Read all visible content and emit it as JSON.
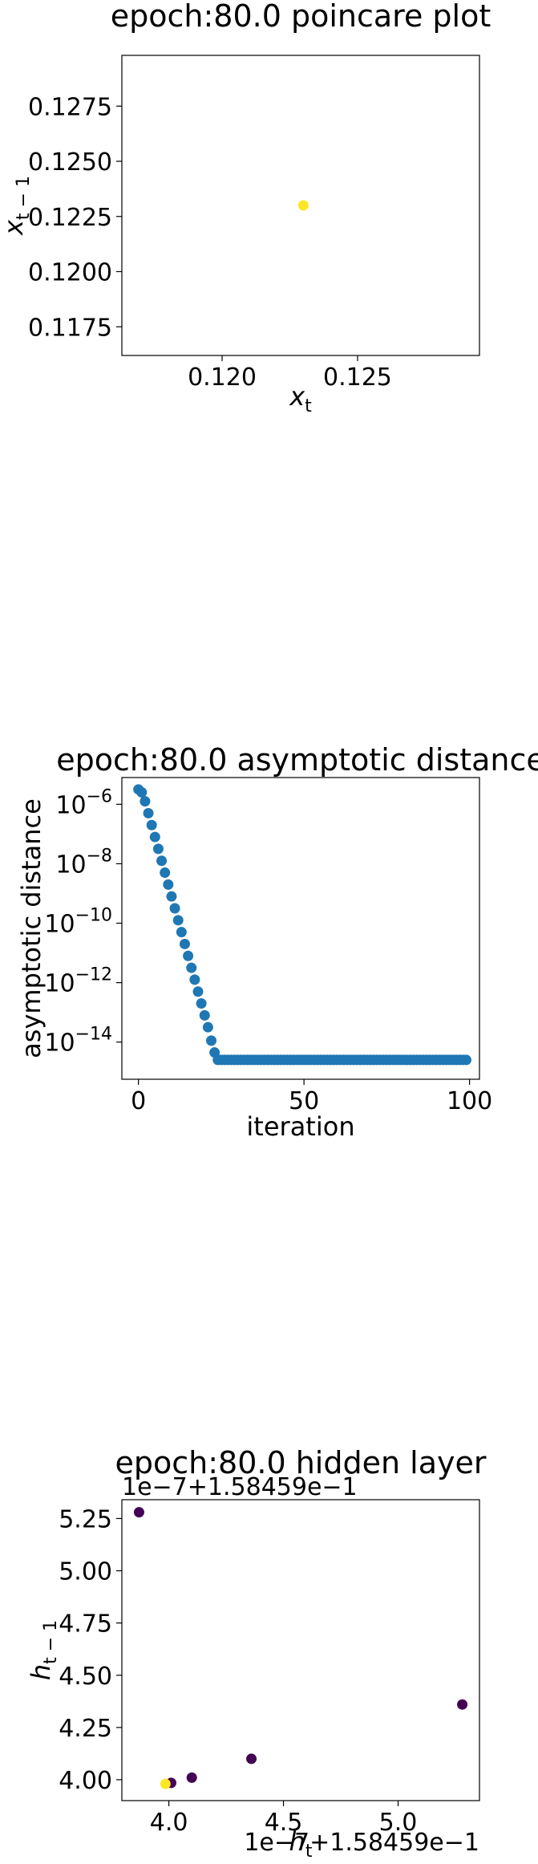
{
  "chart_data": [
    {
      "type": "scatter",
      "title": "epoch:80.0 poincare plot",
      "xlabel": "x",
      "xlabel_sub": "t",
      "ylabel": "x",
      "ylabel_sub": "t − 1",
      "xlim": [
        0.1163,
        0.1295
      ],
      "ylim": [
        0.1162,
        0.1298
      ],
      "xticks": [
        0.12,
        0.125
      ],
      "xtick_labels": [
        "0.120",
        "0.125"
      ],
      "yticks": [
        0.1175,
        0.12,
        0.1225,
        0.125,
        0.1275
      ],
      "ytick_labels": [
        "0.1175",
        "0.1200",
        "0.1225",
        "0.1250",
        "0.1275"
      ],
      "points": [
        {
          "x": 0.123,
          "y": 0.123,
          "color": "#fde725"
        }
      ]
    },
    {
      "type": "scatter",
      "yscale": "log",
      "title": "epoch:80.0 asymptotic distance",
      "xlabel": "iteration",
      "ylabel": "asymptotic distance",
      "xlim": [
        -5,
        103
      ],
      "ylim_exp": [
        -15.25,
        -5.1
      ],
      "xticks": [
        0,
        50,
        100
      ],
      "xtick_labels": [
        "0",
        "50",
        "100"
      ],
      "yticks_exp": [
        -6,
        -8,
        -10,
        -12,
        -14
      ],
      "ytick_labels": [
        {
          "base": "10",
          "exp": "−6"
        },
        {
          "base": "10",
          "exp": "−8"
        },
        {
          "base": "10",
          "exp": "−10"
        },
        {
          "base": "10",
          "exp": "−12"
        },
        {
          "base": "10",
          "exp": "−14"
        }
      ],
      "color": "#1f77b4",
      "x": [
        0,
        1,
        2,
        3,
        4,
        5,
        6,
        7,
        8,
        9,
        10,
        11,
        12,
        13,
        14,
        15,
        16,
        17,
        18,
        19,
        20,
        21,
        22,
        23,
        24,
        25,
        26,
        27,
        28,
        29,
        30,
        31,
        32,
        33,
        34,
        35,
        36,
        37,
        38,
        39,
        40,
        41,
        42,
        43,
        44,
        45,
        46,
        47,
        48,
        49,
        50,
        51,
        52,
        53,
        54,
        55,
        56,
        57,
        58,
        59,
        60,
        61,
        62,
        63,
        64,
        65,
        66,
        67,
        68,
        69,
        70,
        71,
        72,
        73,
        74,
        75,
        76,
        77,
        78,
        79,
        80,
        81,
        82,
        83,
        84,
        85,
        86,
        87,
        88,
        89,
        90,
        91,
        92,
        93,
        94,
        95,
        96,
        97,
        98,
        99
      ],
      "y_exp": [
        -5.5,
        -5.6,
        -5.9,
        -6.3,
        -6.7,
        -7.1,
        -7.5,
        -7.9,
        -8.3,
        -8.7,
        -9.1,
        -9.5,
        -9.9,
        -10.3,
        -10.7,
        -11.1,
        -11.5,
        -11.9,
        -12.3,
        -12.7,
        -13.1,
        -13.5,
        -13.95,
        -14.35,
        -14.6,
        -14.6,
        -14.6,
        -14.6,
        -14.6,
        -14.6,
        -14.6,
        -14.6,
        -14.6,
        -14.6,
        -14.6,
        -14.6,
        -14.6,
        -14.6,
        -14.6,
        -14.6,
        -14.6,
        -14.6,
        -14.6,
        -14.6,
        -14.6,
        -14.6,
        -14.6,
        -14.6,
        -14.6,
        -14.6,
        -14.6,
        -14.6,
        -14.6,
        -14.6,
        -14.6,
        -14.6,
        -14.6,
        -14.6,
        -14.6,
        -14.6,
        -14.6,
        -14.6,
        -14.6,
        -14.6,
        -14.6,
        -14.6,
        -14.6,
        -14.6,
        -14.6,
        -14.6,
        -14.6,
        -14.6,
        -14.6,
        -14.6,
        -14.6,
        -14.6,
        -14.6,
        -14.6,
        -14.6,
        -14.6,
        -14.6,
        -14.6,
        -14.6,
        -14.6,
        -14.6,
        -14.6,
        -14.6,
        -14.6,
        -14.6,
        -14.6,
        -14.6,
        -14.6,
        -14.6,
        -14.6,
        -14.6,
        -14.6,
        -14.6,
        -14.6,
        -14.6,
        -14.6
      ]
    },
    {
      "type": "scatter",
      "title": "epoch:80.0 hidden layer",
      "y_offset_text": "1e−7+1.58459e−1",
      "x_offset_text": "1e−7+1.58459e−1",
      "xlabel": "h",
      "xlabel_sub": "t",
      "ylabel": "h",
      "ylabel_sub": "t − 1",
      "xlim": [
        3.795,
        5.355
      ],
      "ylim": [
        3.9,
        5.34
      ],
      "xticks": [
        4.0,
        4.5,
        5.0
      ],
      "xtick_labels": [
        "4.0",
        "4.5",
        "5.0"
      ],
      "yticks": [
        4.0,
        4.25,
        4.5,
        4.75,
        5.0,
        5.25
      ],
      "ytick_labels": [
        "4.00",
        "4.25",
        "4.50",
        "4.75",
        "5.00",
        "5.25"
      ],
      "points": [
        {
          "x": 3.87,
          "y": 5.28,
          "color": "#440154"
        },
        {
          "x": 5.28,
          "y": 4.36,
          "color": "#440154"
        },
        {
          "x": 4.36,
          "y": 4.1,
          "color": "#440154"
        },
        {
          "x": 4.1,
          "y": 4.01,
          "color": "#440154"
        },
        {
          "x": 4.01,
          "y": 3.985,
          "color": "#440154"
        },
        {
          "x": 3.985,
          "y": 3.98,
          "color": "#fde725"
        }
      ]
    }
  ]
}
